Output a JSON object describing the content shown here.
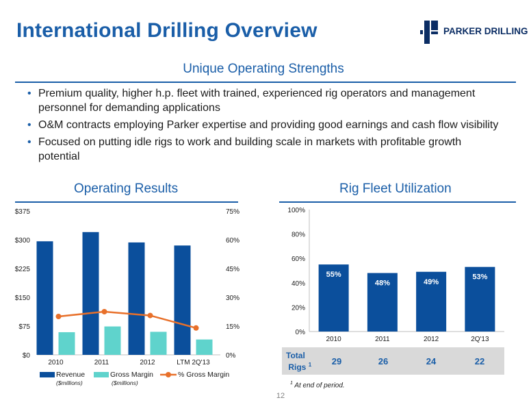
{
  "title": "International Drilling Overview",
  "logo": {
    "text": "PARKER DRILLING",
    "icon": "parker-p-icon"
  },
  "strengths": {
    "heading": "Unique Operating Strengths",
    "bullets": [
      "Premium quality, higher h.p. fleet with trained, experienced rig operators and management personnel for demanding applications",
      "O&M contracts employing Parker expertise and providing good earnings and cash flow visibility",
      "Focused on putting idle rigs to work and building scale in markets with profitable growth potential"
    ]
  },
  "operating_results": {
    "heading": "Operating Results"
  },
  "utilization": {
    "heading": "Rig Fleet Utilization",
    "total_rigs_label": "Total",
    "total_rigs_label2": "Rigs",
    "total_rigs_sup": "1",
    "total_rigs": [
      "29",
      "26",
      "24",
      "22"
    ],
    "footnote_sup": "1",
    "footnote": " At end of period."
  },
  "page_number": "12",
  "colors": {
    "title": "#1a5ea8",
    "revenue": "#0b4f9c",
    "gross_margin": "#5fd3cc",
    "pct_line": "#e8702a"
  },
  "chart_data": [
    {
      "type": "bar",
      "categories": [
        "2010",
        "2011",
        "2012",
        "LTM 2Q'13"
      ],
      "series": [
        {
          "name": "Revenue",
          "sublabel": "($millions)",
          "values": [
            296,
            320,
            293,
            285
          ]
        },
        {
          "name": "Gross Margin",
          "sublabel": "($millions)",
          "values": [
            59,
            74,
            60,
            40
          ]
        },
        {
          "name": "% Gross Margin",
          "type": "line",
          "axis": "right",
          "values": [
            20,
            22.5,
            20.5,
            14
          ]
        }
      ],
      "ylim": [
        0,
        375
      ],
      "yticks": [
        "$0",
        "$75",
        "$150",
        "$225",
        "$300",
        "$375"
      ],
      "y2lim": [
        0,
        75
      ],
      "y2ticks": [
        "0%",
        "15%",
        "30%",
        "45%",
        "60%",
        "75%"
      ],
      "legend": "bottom",
      "grid": false
    },
    {
      "type": "bar",
      "categories": [
        "2010",
        "2011",
        "2012",
        "2Q'13"
      ],
      "values": [
        55,
        48,
        49,
        53
      ],
      "data_labels": [
        "55%",
        "48%",
        "49%",
        "53%"
      ],
      "ylim": [
        0,
        100
      ],
      "yticks": [
        "0%",
        "20%",
        "40%",
        "60%",
        "80%",
        "100%"
      ],
      "grid": false
    }
  ]
}
